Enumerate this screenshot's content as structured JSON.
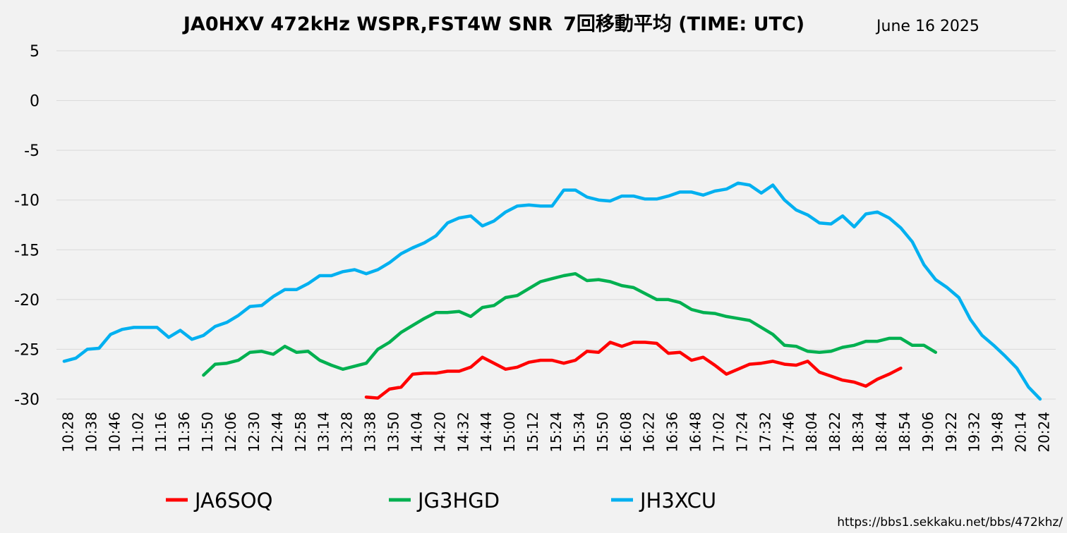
{
  "chart_data": {
    "type": "line",
    "title": "JA0HXV 472kHz WSPR,FST4W SNR",
    "title_suffix": "7回移動平均 (TIME: UTC)",
    "date": "June 16 2025",
    "source_url": "https://bbs1.sekkaku.net/bbs/472khz/",
    "ylim": [
      -30,
      5
    ],
    "yticks": [
      5,
      0,
      -5,
      -10,
      -15,
      -20,
      -25,
      -30
    ],
    "ytick_labels": [
      "5",
      "0",
      "-5",
      "-10",
      "-15",
      "-20",
      "-25",
      "-30"
    ],
    "grid": true,
    "legend_position": "bottom",
    "x_tick_labels": [
      "10:28",
      "10:38",
      "10:46",
      "11:02",
      "11:16",
      "11:36",
      "11:50",
      "12:06",
      "12:30",
      "12:44",
      "12:58",
      "13:14",
      "13:28",
      "13:38",
      "13:50",
      "14:04",
      "14:20",
      "14:32",
      "14:44",
      "15:00",
      "15:12",
      "15:24",
      "15:34",
      "15:50",
      "16:08",
      "16:22",
      "16:36",
      "16:48",
      "17:02",
      "17:24",
      "17:32",
      "17:46",
      "18:04",
      "18:22",
      "18:34",
      "18:44",
      "18:54",
      "19:06",
      "19:22",
      "19:32",
      "19:48",
      "20:14",
      "20:24"
    ],
    "series": [
      {
        "name": "JA6SOQ",
        "color": "#ff0000",
        "x": [
          13.33,
          13.83,
          14.33,
          14.83,
          15.33,
          15.83,
          16.33,
          16.83,
          17.33,
          17.83,
          18.33,
          18.83,
          19.33,
          19.83,
          20.33,
          20.83,
          21.33,
          21.83,
          22.33,
          22.83,
          23.33,
          23.83,
          24.33,
          24.83,
          25.33,
          25.83,
          26.33,
          26.83,
          27.33,
          27.83,
          28.33,
          28.83,
          29.33,
          29.83,
          30.33,
          30.83,
          31.33,
          31.83,
          32.33,
          32.83,
          33.33,
          33.83,
          34.33,
          34.83,
          35.33,
          35.83,
          36.33
        ],
        "values": [
          -29.8,
          -29.9,
          -29.0,
          -28.8,
          -27.5,
          -27.4,
          -27.4,
          -27.2,
          -27.2,
          -26.8,
          -25.8,
          -26.4,
          -27.0,
          -26.8,
          -26.3,
          -26.1,
          -26.1,
          -26.4,
          -26.1,
          -25.2,
          -25.3,
          -24.3,
          -24.7,
          -24.3,
          -24.3,
          -24.4,
          -25.4,
          -25.3,
          -26.1,
          -25.8,
          -26.6,
          -27.5,
          -27.0,
          -26.5,
          -26.4,
          -26.2,
          -26.5,
          -26.6,
          -26.2,
          -27.3,
          -27.7,
          -28.1,
          -28.3,
          -28.7,
          -28.0,
          -27.5,
          -26.9
        ]
      },
      {
        "name": "JG3HGD",
        "color": "#00b050",
        "x": [
          6.33,
          6.83,
          7.33,
          7.83,
          8.33,
          8.83,
          9.33,
          9.83,
          10.33,
          10.83,
          11.33,
          11.83,
          12.33,
          12.83,
          13.33,
          13.83,
          14.33,
          14.83,
          15.33,
          15.83,
          16.33,
          16.83,
          17.33,
          17.83,
          18.33,
          18.83,
          19.33,
          19.83,
          20.33,
          20.83,
          21.33,
          21.83,
          22.33,
          22.83,
          23.33,
          23.83,
          24.33,
          24.83,
          25.33,
          25.83,
          26.33,
          26.83,
          27.33,
          27.83,
          28.33,
          28.83,
          29.33,
          29.83,
          30.33,
          30.83,
          31.33,
          31.83,
          32.33,
          32.83,
          33.33,
          33.83,
          34.33,
          34.83,
          35.33,
          35.83,
          36.33,
          36.83,
          37.33,
          37.83,
          38.33,
          38.83,
          39.33
        ],
        "values": [
          -27.6,
          -26.5,
          -26.4,
          -26.1,
          -25.3,
          -25.2,
          -25.5,
          -24.7,
          -25.3,
          -25.2,
          -26.1,
          -26.6,
          -27.0,
          -26.7,
          -26.4,
          -25.0,
          -24.3,
          -23.3,
          -22.6,
          -21.9,
          -21.3,
          -21.3,
          -21.2,
          -21.7,
          -20.8,
          -20.6,
          -19.8,
          -19.6,
          -18.9,
          -18.2,
          -17.9,
          -17.6,
          -17.4,
          -18.1,
          -18.0,
          -18.2,
          -18.6,
          -18.8,
          -19.4,
          -20.0,
          -20.0,
          -20.3,
          -21.0,
          -21.3,
          -21.4,
          -21.7,
          -21.9,
          -22.1,
          -22.8,
          -23.5,
          -24.6,
          -24.7,
          -25.2,
          -25.3,
          -25.2,
          -24.8,
          -24.6,
          -24.2,
          -24.2,
          -23.9,
          -23.9,
          -24.6,
          -24.6,
          -25.3,
          null,
          null,
          null
        ]
      },
      {
        "name": "JH3XCU",
        "color": "#00b0f0",
        "x": [
          0.33,
          0.83,
          1.33,
          1.83,
          2.33,
          2.83,
          3.33,
          3.83,
          4.33,
          4.83,
          5.33,
          5.83,
          6.33,
          6.83,
          7.33,
          7.83,
          8.33,
          8.83,
          9.33,
          9.83,
          10.33,
          10.83,
          11.33,
          11.83,
          12.33,
          12.83,
          13.33,
          13.83,
          14.33,
          14.83,
          15.33,
          15.83,
          16.33,
          16.83,
          17.33,
          17.83,
          18.33,
          18.83,
          19.33,
          19.83,
          20.33,
          20.83,
          21.33,
          21.83,
          22.33,
          22.83,
          23.33,
          23.83,
          24.33,
          24.83,
          25.33,
          25.83,
          26.33,
          26.83,
          27.33,
          27.83,
          28.33,
          28.83,
          29.33,
          29.83,
          30.33,
          30.83,
          31.33,
          31.83,
          32.33,
          32.83,
          33.33,
          33.83,
          34.33,
          34.83,
          35.33,
          35.83,
          36.33,
          36.83,
          37.33,
          37.83,
          38.33,
          38.83,
          39.33,
          39.83,
          40.33,
          40.83,
          41.33,
          41.83,
          42.33
        ],
        "values": [
          -26.2,
          -25.9,
          -25.0,
          -24.9,
          -23.5,
          -23.0,
          -22.8,
          -22.8,
          -22.8,
          -23.8,
          -23.1,
          -24.0,
          -23.6,
          -22.7,
          -22.3,
          -21.6,
          -20.7,
          -20.6,
          -19.7,
          -19.0,
          -19.0,
          -18.4,
          -17.6,
          -17.6,
          -17.2,
          -17.0,
          -17.4,
          -17.0,
          -16.3,
          -15.4,
          -14.8,
          -14.3,
          -13.6,
          -12.3,
          -11.8,
          -11.6,
          -12.6,
          -12.1,
          -11.2,
          -10.6,
          -10.5,
          -10.6,
          -10.6,
          -9.0,
          -9.0,
          -9.7,
          -10.0,
          -10.1,
          -9.6,
          -9.6,
          -9.9,
          -9.9,
          -9.6,
          -9.2,
          -9.2,
          -9.5,
          -9.1,
          -8.9,
          -8.3,
          -8.5,
          -9.3,
          -8.5,
          -10.0,
          -11.0,
          -11.5,
          -12.3,
          -12.4,
          -11.6,
          -12.7,
          -11.4,
          -11.2,
          -11.8,
          -12.8,
          -14.2,
          -16.5,
          -18.0,
          -18.8,
          -19.8,
          -22.0,
          -23.6,
          -24.6,
          -25.7,
          -26.9,
          -28.8,
          -30.0
        ]
      }
    ]
  }
}
